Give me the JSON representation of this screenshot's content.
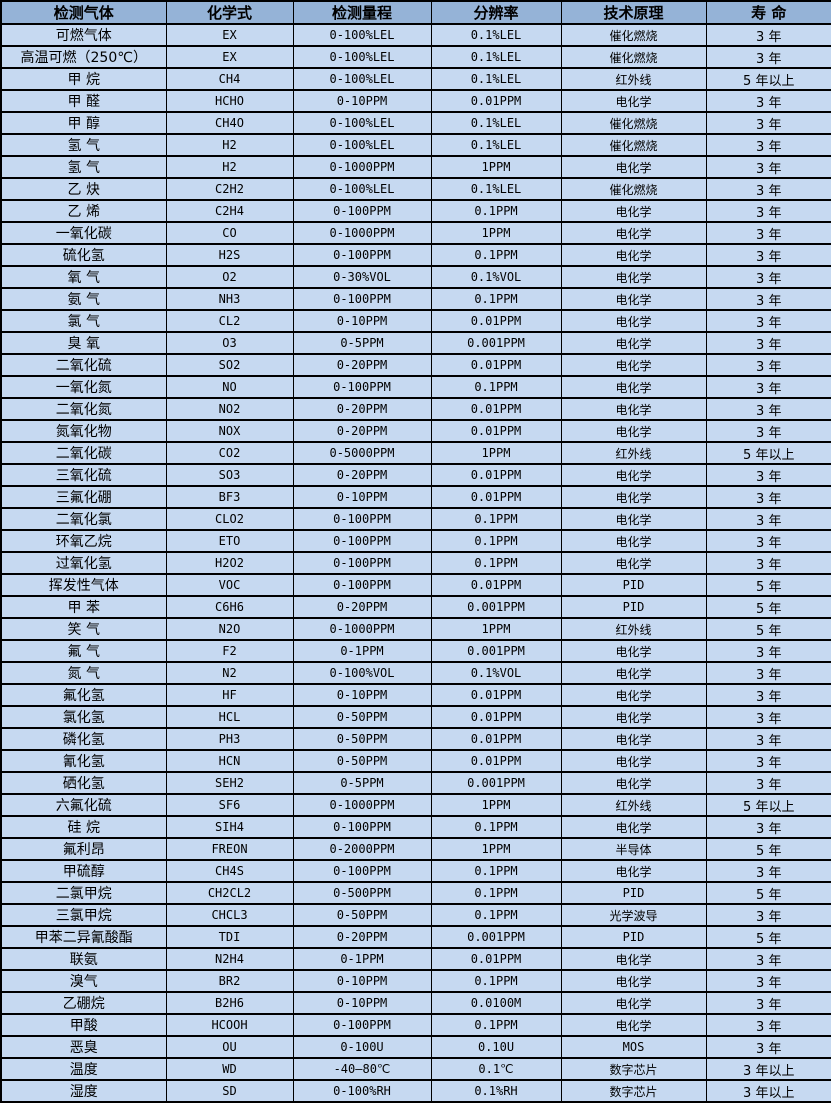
{
  "colors": {
    "header_bg": "#95b3d7",
    "row_bg": "#c6d9f1",
    "border": "#000000",
    "text": "#000000"
  },
  "table": {
    "columns": [
      {
        "key": "gas",
        "label": "检测气体"
      },
      {
        "key": "formula",
        "label": "化学式"
      },
      {
        "key": "range",
        "label": "检测量程"
      },
      {
        "key": "resolution",
        "label": "分辨率"
      },
      {
        "key": "principle",
        "label": "技术原理"
      },
      {
        "key": "life",
        "label": "寿 命"
      }
    ],
    "rows": [
      [
        "可燃气体",
        "EX",
        "0-100%LEL",
        "0.1%LEL",
        "催化燃烧",
        "3 年"
      ],
      [
        "高温可燃（250℃）",
        "EX",
        "0-100%LEL",
        "0.1%LEL",
        "催化燃烧",
        "3 年"
      ],
      [
        "甲 烷",
        "CH4",
        "0-100%LEL",
        "0.1%LEL",
        "红外线",
        "5 年以上"
      ],
      [
        "甲 醛",
        "HCHO",
        "0-10PPM",
        "0.01PPM",
        "电化学",
        "3 年"
      ],
      [
        "甲 醇",
        "CH4O",
        "0-100%LEL",
        "0.1%LEL",
        "催化燃烧",
        "3 年"
      ],
      [
        "氢 气",
        "H2",
        "0-100%LEL",
        "0.1%LEL",
        "催化燃烧",
        "3 年"
      ],
      [
        "氢 气",
        "H2",
        "0-1000PPM",
        "1PPM",
        "电化学",
        "3 年"
      ],
      [
        "乙 炔",
        "C2H2",
        "0-100%LEL",
        "0.1%LEL",
        "催化燃烧",
        "3 年"
      ],
      [
        "乙 烯",
        "C2H4",
        "0-100PPM",
        "0.1PPM",
        "电化学",
        "3 年"
      ],
      [
        "一氧化碳",
        "CO",
        "0-1000PPM",
        "1PPM",
        "电化学",
        "3 年"
      ],
      [
        "硫化氢",
        "H2S",
        "0-100PPM",
        "0.1PPM",
        "电化学",
        "3 年"
      ],
      [
        "氧 气",
        "O2",
        "0-30%VOL",
        "0.1%VOL",
        "电化学",
        "3 年"
      ],
      [
        "氨 气",
        "NH3",
        "0-100PPM",
        "0.1PPM",
        "电化学",
        "3 年"
      ],
      [
        "氯 气",
        "CL2",
        "0-10PPM",
        "0.01PPM",
        "电化学",
        "3 年"
      ],
      [
        "臭 氧",
        "O3",
        "0-5PPM",
        "0.001PPM",
        "电化学",
        "3 年"
      ],
      [
        "二氧化硫",
        "SO2",
        "0-20PPM",
        "0.01PPM",
        "电化学",
        "3 年"
      ],
      [
        "一氧化氮",
        "NO",
        "0-100PPM",
        "0.1PPM",
        "电化学",
        "3 年"
      ],
      [
        "二氧化氮",
        "NO2",
        "0-20PPM",
        "0.01PPM",
        "电化学",
        "3 年"
      ],
      [
        "氮氧化物",
        "NOX",
        "0-20PPM",
        "0.01PPM",
        "电化学",
        "3 年"
      ],
      [
        "二氧化碳",
        "CO2",
        "0-5000PPM",
        "1PPM",
        "红外线",
        "5 年以上"
      ],
      [
        "三氧化硫",
        "SO3",
        "0-20PPM",
        "0.01PPM",
        "电化学",
        "3 年"
      ],
      [
        "三氟化硼",
        "BF3",
        "0-10PPM",
        "0.01PPM",
        "电化学",
        "3 年"
      ],
      [
        "二氧化氯",
        "CLO2",
        "0-100PPM",
        "0.1PPM",
        "电化学",
        "3 年"
      ],
      [
        "环氧乙烷",
        "ETO",
        "0-100PPM",
        "0.1PPM",
        "电化学",
        "3 年"
      ],
      [
        "过氧化氢",
        "H2O2",
        "0-100PPM",
        "0.1PPM",
        "电化学",
        "3 年"
      ],
      [
        "挥发性气体",
        "VOC",
        "0-100PPM",
        "0.01PPM",
        "PID",
        "5 年"
      ],
      [
        "甲 苯",
        "C6H6",
        "0-20PPM",
        "0.001PPM",
        "PID",
        "5 年"
      ],
      [
        "笑 气",
        "N2O",
        "0-1000PPM",
        "1PPM",
        "红外线",
        "5 年"
      ],
      [
        "氟 气",
        "F2",
        "0-1PPM",
        "0.001PPM",
        "电化学",
        "3 年"
      ],
      [
        "氮 气",
        "N2",
        "0-100%VOL",
        "0.1%VOL",
        "电化学",
        "3 年"
      ],
      [
        "氟化氢",
        "HF",
        "0-10PPM",
        "0.01PPM",
        "电化学",
        "3 年"
      ],
      [
        "氯化氢",
        "HCL",
        "0-50PPM",
        "0.01PPM",
        "电化学",
        "3 年"
      ],
      [
        "磷化氢",
        "PH3",
        "0-50PPM",
        "0.01PPM",
        "电化学",
        "3 年"
      ],
      [
        "氰化氢",
        "HCN",
        "0-50PPM",
        "0.01PPM",
        "电化学",
        "3 年"
      ],
      [
        "硒化氢",
        "SEH2",
        "0-5PPM",
        "0.001PPM",
        "电化学",
        "3 年"
      ],
      [
        "六氟化硫",
        "SF6",
        "0-1000PPM",
        "1PPM",
        "红外线",
        "5 年以上"
      ],
      [
        "硅 烷",
        "SIH4",
        "0-100PPM",
        "0.1PPM",
        "电化学",
        "3 年"
      ],
      [
        "氟利昂",
        "FREON",
        "0-2000PPM",
        "1PPM",
        "半导体",
        "5 年"
      ],
      [
        "甲硫醇",
        "CH4S",
        "0-100PPM",
        "0.1PPM",
        "电化学",
        "3 年"
      ],
      [
        "二氯甲烷",
        "CH2CL2",
        "0-500PPM",
        "0.1PPM",
        "PID",
        "5 年"
      ],
      [
        "三氯甲烷",
        "CHCL3",
        "0-50PPM",
        "0.1PPM",
        "光学波导",
        "3 年"
      ],
      [
        "甲苯二异氰酸酯",
        "TDI",
        "0-20PPM",
        "0.001PPM",
        "PID",
        "5 年"
      ],
      [
        "联氨",
        "N2H4",
        "0-1PPM",
        "0.01PPM",
        "电化学",
        "3 年"
      ],
      [
        "溴气",
        "BR2",
        "0-10PPM",
        "0.1PPM",
        "电化学",
        "3 年"
      ],
      [
        "乙硼烷",
        "B2H6",
        "0-10PPM",
        "0.0100M",
        "电化学",
        "3 年"
      ],
      [
        "甲酸",
        "HCOOH",
        "0-100PPM",
        "0.1PPM",
        "电化学",
        "3 年"
      ],
      [
        "恶臭",
        "OU",
        "0-100U",
        "0.10U",
        "MOS",
        "3 年"
      ],
      [
        "温度",
        "WD",
        "-40—80℃",
        "0.1℃",
        "数字芯片",
        "3 年以上"
      ],
      [
        "湿度",
        "SD",
        "0-100%RH",
        "0.1%RH",
        "数字芯片",
        "3 年以上"
      ]
    ]
  }
}
